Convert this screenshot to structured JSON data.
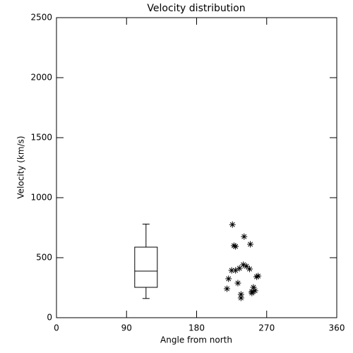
{
  "chart_data": {
    "type": "box-scatter",
    "title": "Velocity distribution",
    "xlabel": "Angle from north",
    "ylabel": "Velocity (km/s)",
    "xlim": [
      0,
      360
    ],
    "xticks": [
      0,
      90,
      180,
      270,
      360
    ],
    "ylim": [
      0,
      2500
    ],
    "yticks": [
      0,
      500,
      1000,
      1500,
      2000,
      2500
    ],
    "color": "#000000",
    "box": {
      "x": 115,
      "min": 160,
      "q1": 253,
      "median": 388,
      "q3": 588,
      "max": 780
    },
    "points": {
      "x": [
        226,
        241,
        228,
        230,
        249,
        240,
        244,
        235,
        248,
        225,
        230,
        221,
        233,
        259,
        257,
        219,
        253,
        255,
        251,
        237,
        237,
        251
      ],
      "y": [
        776,
        676,
        600,
        594,
        612,
        441,
        429,
        412,
        406,
        394,
        394,
        324,
        288,
        347,
        341,
        241,
        253,
        224,
        218,
        194,
        165,
        206
      ]
    }
  }
}
